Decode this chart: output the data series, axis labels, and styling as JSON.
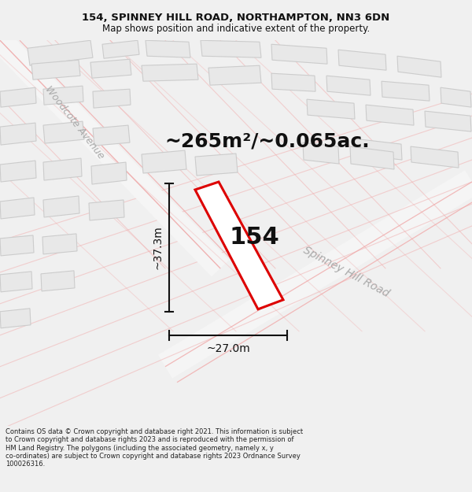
{
  "title": "154, SPINNEY HILL ROAD, NORTHAMPTON, NN3 6DN",
  "subtitle": "Map shows position and indicative extent of the property.",
  "area_text": "~265m²/~0.065ac.",
  "label_154": "154",
  "dim_height": "~37.3m",
  "dim_width": "~27.0m",
  "road_label": "Spinney Hill Road",
  "avenue_label": "Woodcote Avenue",
  "footer_lines": [
    "Contains OS data © Crown copyright and database right 2021. This information is subject",
    "to Crown copyright and database rights 2023 and is reproduced with the permission of",
    "HM Land Registry. The polygons (including the associated geometry, namely x, y",
    "co-ordinates) are subject to Crown copyright and database rights 2023 Ordnance Survey",
    "100026316."
  ],
  "bg_color": "#f0f0f0",
  "map_bg": "#ffffff",
  "plot_color": "#dd0000",
  "building_fill": "#e8e8e8",
  "building_stroke": "#cccccc",
  "road_line_color": "#f0aaaa",
  "street_label_color": "#aaaaaa",
  "dim_color": "#111111",
  "title_fontsize": 9.5,
  "subtitle_fontsize": 8.5,
  "area_fontsize": 18,
  "label_fontsize": 22,
  "dim_fontsize": 10,
  "road_label_fontsize": 10,
  "footer_fontsize": 6.0
}
